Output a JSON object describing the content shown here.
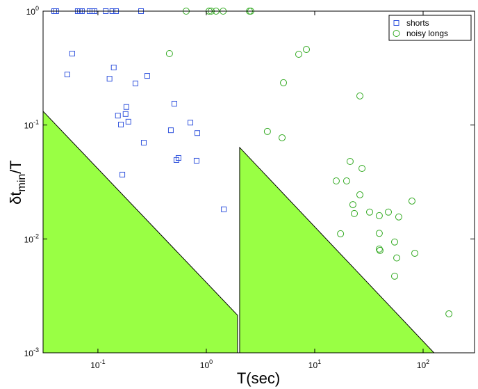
{
  "chart_data": {
    "type": "scatter",
    "xlabel": "T(sec)",
    "ylabel": [
      "δt",
      "min",
      "/T"
    ],
    "xscale": "log",
    "yscale": "log",
    "xlim": [
      0.0312,
      298
    ],
    "ylim": [
      0.001,
      1
    ],
    "xticks": [
      {
        "value": 0.1,
        "label": "10",
        "exponent": "-1"
      },
      {
        "value": 1,
        "label": "10",
        "exponent": "0"
      },
      {
        "value": 10,
        "label": "10",
        "exponent": "1"
      },
      {
        "value": 100,
        "label": "10",
        "exponent": "2"
      }
    ],
    "yticks": [
      {
        "value": 0.001,
        "label": "10",
        "exponent": "-3"
      },
      {
        "value": 0.01,
        "label": "10",
        "exponent": "-2"
      },
      {
        "value": 0.1,
        "label": "10",
        "exponent": "-1"
      },
      {
        "value": 1,
        "label": "10",
        "exponent": "0"
      }
    ],
    "legend": "upper right",
    "regions": [
      {
        "color": "#99ff44",
        "x": [
          0.0312,
          1.94,
          1.94,
          0.0312
        ],
        "y": [
          0.132,
          0.00214,
          0.001,
          0.001
        ]
      },
      {
        "color": "#99ff44",
        "x": [
          2.03,
          126,
          2.03
        ],
        "y": [
          0.0635,
          0.001,
          0.001
        ]
      }
    ],
    "series": [
      {
        "name": "shorts",
        "color": "#3355dd",
        "marker": "square",
        "x": [
          0.0395,
          0.0412,
          0.0652,
          0.0681,
          0.0712,
          0.0838,
          0.0889,
          0.0929,
          0.118,
          0.136,
          0.147,
          0.25,
          0.0579,
          0.0522,
          0.14,
          0.128,
          0.153,
          0.183,
          0.18,
          0.163,
          0.191,
          0.222,
          0.285,
          0.265,
          0.507,
          0.471,
          0.713,
          0.826,
          0.53,
          0.554,
          0.813,
          0.168,
          1.45
        ],
        "values": [
          1,
          1,
          1,
          1,
          1,
          1,
          1,
          1,
          1,
          1,
          1,
          1,
          0.424,
          0.278,
          0.32,
          0.255,
          0.121,
          0.144,
          0.125,
          0.101,
          0.107,
          0.232,
          0.27,
          0.07,
          0.154,
          0.09,
          0.105,
          0.085,
          0.0493,
          0.0514,
          0.0486,
          0.0367,
          0.0182
        ]
      },
      {
        "name": "noisy longs",
        "color": "#33aa22",
        "marker": "circle",
        "x": [
          0.652,
          1.06,
          1.11,
          1.23,
          1.43,
          2.5,
          2.57,
          0.457,
          7.12,
          8.38,
          5.15,
          26.1,
          3.66,
          5.0,
          21.2,
          27.3,
          15.8,
          19.7,
          26.1,
          22.5,
          23.2,
          17.3,
          32.1,
          47.8,
          39.4,
          59.6,
          78.9,
          39.4,
          54.6,
          39.4,
          40.0,
          57.1,
          54.6,
          83.8,
          173
        ],
        "values": [
          1,
          1,
          1,
          1,
          1,
          1,
          1,
          0.424,
          0.418,
          0.461,
          0.235,
          0.18,
          0.0878,
          0.0773,
          0.0479,
          0.0416,
          0.0323,
          0.0323,
          0.0244,
          0.02,
          0.0167,
          0.0111,
          0.0172,
          0.0172,
          0.016,
          0.0156,
          0.0215,
          0.0112,
          0.0094,
          0.00815,
          0.00792,
          0.00681,
          0.00471,
          0.00748,
          0.0022
        ]
      }
    ]
  }
}
